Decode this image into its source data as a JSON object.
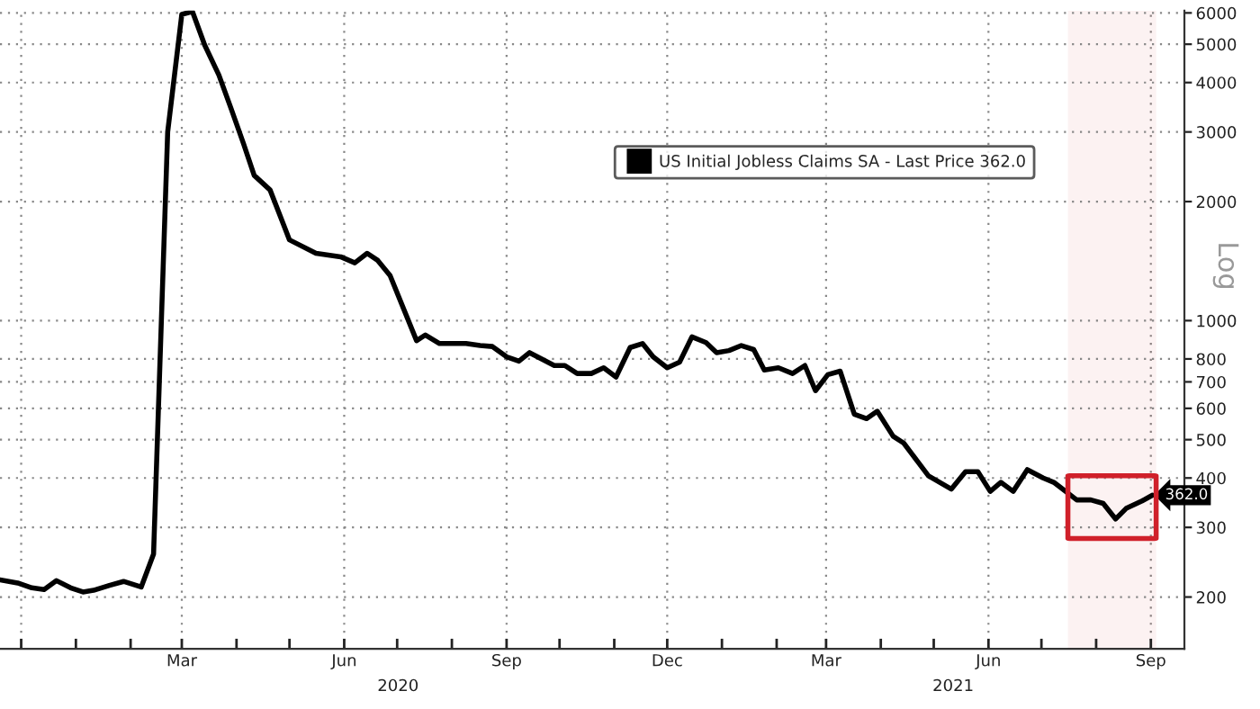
{
  "chart_data": {
    "type": "line",
    "x": [
      "2019-11-19",
      "2019-11-29",
      "2019-12-07",
      "2019-12-14",
      "2019-12-21",
      "2019-12-29",
      "2020-01-05",
      "2020-01-11",
      "2020-01-20",
      "2020-01-28",
      "2020-02-07",
      "2020-02-14",
      "2020-02-22",
      "2020-03-01",
      "2020-03-07",
      "2020-03-14",
      "2020-03-22",
      "2020-03-29",
      "2020-04-05",
      "2020-04-11",
      "2020-04-20",
      "2020-05-01",
      "2020-05-16",
      "2020-05-30",
      "2020-06-07",
      "2020-06-14",
      "2020-06-20",
      "2020-06-27",
      "2020-07-12",
      "2020-07-17",
      "2020-07-25",
      "2020-08-09",
      "2020-08-17",
      "2020-08-24",
      "2020-09-01",
      "2020-09-08",
      "2020-09-14",
      "2020-09-28",
      "2020-10-04",
      "2020-10-11",
      "2020-10-19",
      "2020-10-26",
      "2020-11-02",
      "2020-11-10",
      "2020-11-17",
      "2020-11-23",
      "2020-12-01",
      "2020-12-08",
      "2020-12-15",
      "2020-12-23",
      "2020-12-29",
      "2021-01-05",
      "2021-01-12",
      "2021-01-19",
      "2021-01-25",
      "2021-02-02",
      "2021-02-10",
      "2021-02-17",
      "2021-02-23",
      "2021-03-02",
      "2021-03-09",
      "2021-03-17",
      "2021-03-24",
      "2021-03-30",
      "2021-04-08",
      "2021-04-14",
      "2021-04-28",
      "2021-05-11",
      "2021-05-19",
      "2021-05-26",
      "2021-06-02",
      "2021-06-08",
      "2021-06-15",
      "2021-06-23",
      "2021-07-02",
      "2021-07-08",
      "2021-07-12",
      "2021-07-21",
      "2021-07-29",
      "2021-08-05",
      "2021-08-12",
      "2021-08-18",
      "2021-08-27",
      "2021-09-02"
    ],
    "series": [
      {
        "name": "US Initial Jobless Claims SA - Last Price 362.0",
        "color": "#000000",
        "values": [
          221,
          217,
          211,
          209,
          220,
          211,
          206,
          208,
          214,
          219,
          212,
          257,
          3000,
          5950,
          6050,
          4970,
          4180,
          3430,
          2800,
          2330,
          2140,
          1600,
          1480,
          1450,
          1400,
          1480,
          1420,
          1300,
          890,
          920,
          875,
          875,
          865,
          860,
          810,
          790,
          830,
          770,
          770,
          735,
          735,
          760,
          720,
          855,
          875,
          810,
          760,
          785,
          910,
          880,
          830,
          840,
          865,
          845,
          750,
          760,
          735,
          770,
          665,
          730,
          745,
          580,
          565,
          590,
          510,
          490,
          405,
          375,
          415,
          415,
          370,
          390,
          370,
          420,
          400,
          390,
          378,
          352,
          352,
          345,
          315,
          335,
          350,
          362.0
        ],
        "value_labels": [
          null,
          null,
          null,
          null,
          null,
          null,
          null,
          null,
          null,
          null,
          null,
          null,
          null,
          null,
          null,
          null,
          null,
          null,
          null,
          null,
          null,
          null,
          null,
          null,
          null,
          null,
          null,
          null,
          null,
          null,
          null,
          null,
          null,
          null,
          null,
          null,
          null,
          null,
          null,
          null,
          null,
          null,
          null,
          null,
          null,
          null,
          null,
          null,
          null,
          null,
          null,
          null,
          null,
          null,
          null,
          null,
          null,
          null,
          null,
          null,
          null,
          null,
          null,
          null,
          null,
          null,
          null,
          null,
          null,
          null,
          null,
          null,
          null,
          null,
          null,
          null,
          null,
          null,
          null,
          null,
          null,
          null,
          null,
          "362.0"
        ]
      }
    ],
    "ylabel": "Log",
    "log": "y",
    "ylim": [
      148,
      6080
    ],
    "yticks": [
      200,
      300,
      400,
      500,
      600,
      700,
      800,
      1000,
      2000,
      3000,
      4000,
      5000,
      6000
    ],
    "xlim": [
      "2019-11-19",
      "2021-09-20"
    ],
    "xticks": [
      {
        "value": "2019-12-01",
        "label": null
      },
      {
        "value": "2020-01-01",
        "label": null
      },
      {
        "value": "2020-02-01",
        "label": null
      },
      {
        "value": "2020-03-01",
        "label": "Mar"
      },
      {
        "value": "2020-04-01",
        "label": null
      },
      {
        "value": "2020-05-01",
        "label": null
      },
      {
        "value": "2020-06-01",
        "label": "Jun"
      },
      {
        "value": "2020-07-01",
        "label": null
      },
      {
        "value": "2020-08-01",
        "label": null
      },
      {
        "value": "2020-09-01",
        "label": "Sep"
      },
      {
        "value": "2020-10-01",
        "label": null
      },
      {
        "value": "2020-11-01",
        "label": null
      },
      {
        "value": "2020-12-01",
        "label": "Dec"
      },
      {
        "value": "2021-01-01",
        "label": null
      },
      {
        "value": "2021-02-01",
        "label": null
      },
      {
        "value": "2021-03-01",
        "label": "Mar"
      },
      {
        "value": "2021-04-01",
        "label": null
      },
      {
        "value": "2021-05-01",
        "label": null
      },
      {
        "value": "2021-06-01",
        "label": "Jun"
      },
      {
        "value": "2021-07-01",
        "label": null
      },
      {
        "value": "2021-08-01",
        "label": null
      },
      {
        "value": "2021-09-01",
        "label": "Sep"
      }
    ],
    "annotations": [
      "2020",
      "2021"
    ],
    "bands": [
      {
        "axis": "x",
        "from": "2021-07-16",
        "to": "2021-09-04",
        "color": "#d0202a"
      }
    ],
    "grid": true,
    "legend": "top right",
    "line_style": "solid",
    "marker": "none"
  }
}
